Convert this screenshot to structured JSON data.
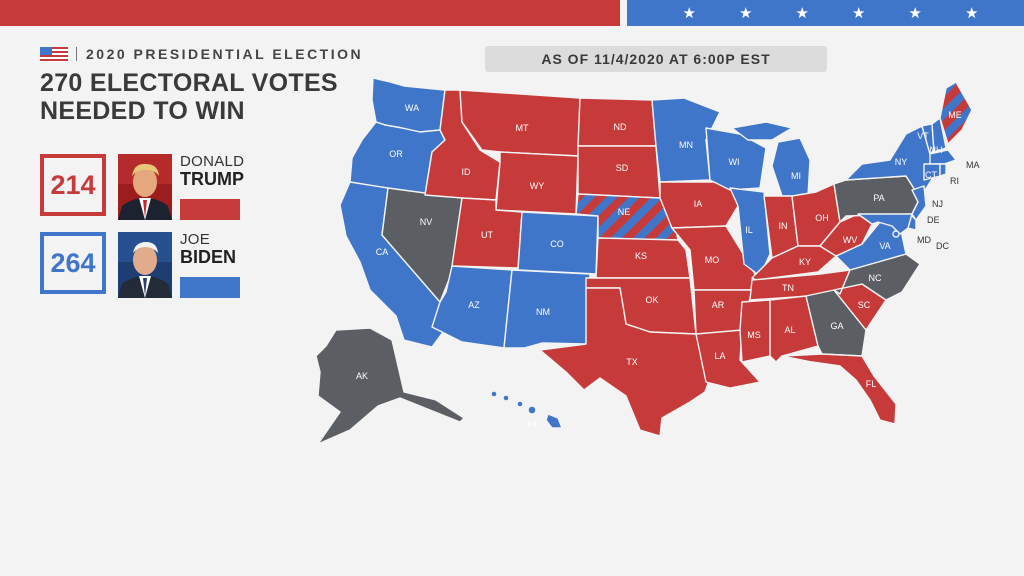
{
  "header": {
    "election_label": "2020 PRESIDENTIAL ELECTION",
    "headline_line1": "270 ELECTORAL VOTES",
    "headline_line2": "NEEDED TO WIN",
    "as_of": "AS OF 11/4/2020 AT 6:00P EST"
  },
  "colors": {
    "republican": "#c63a3a",
    "democrat": "#3f76c9",
    "undecided": "#5b5e63"
  },
  "candidates": [
    {
      "votes": "214",
      "first": "DONALD",
      "last": "TRUMP",
      "party": "republican"
    },
    {
      "votes": "264",
      "first": "JOE",
      "last": "BIDEN",
      "party": "democrat"
    }
  ],
  "states": {
    "WA": "D",
    "OR": "D",
    "CA": "D",
    "NV": "U",
    "ID": "R",
    "MT": "R",
    "WY": "R",
    "UT": "R",
    "AZ": "D",
    "CO": "D",
    "NM": "D",
    "ND": "R",
    "SD": "R",
    "NE": "split",
    "KS": "R",
    "OK": "R",
    "TX": "R",
    "MN": "D",
    "IA": "R",
    "MO": "R",
    "AR": "R",
    "LA": "R",
    "WI": "D",
    "IL": "D",
    "MI": "D",
    "IN": "R",
    "KY": "R",
    "TN": "R",
    "MS": "R",
    "AL": "R",
    "GA": "U",
    "FL": "R",
    "SC": "R",
    "NC": "U",
    "VA": "D",
    "WV": "R",
    "OH": "R",
    "PA": "U",
    "NY": "D",
    "VT": "D",
    "NH": "D",
    "ME": "split",
    "MA": "D",
    "CT": "D",
    "RI": "D",
    "NJ": "D",
    "DE": "D",
    "MD": "D",
    "DC": "D",
    "AK": "U",
    "HI": "D"
  }
}
